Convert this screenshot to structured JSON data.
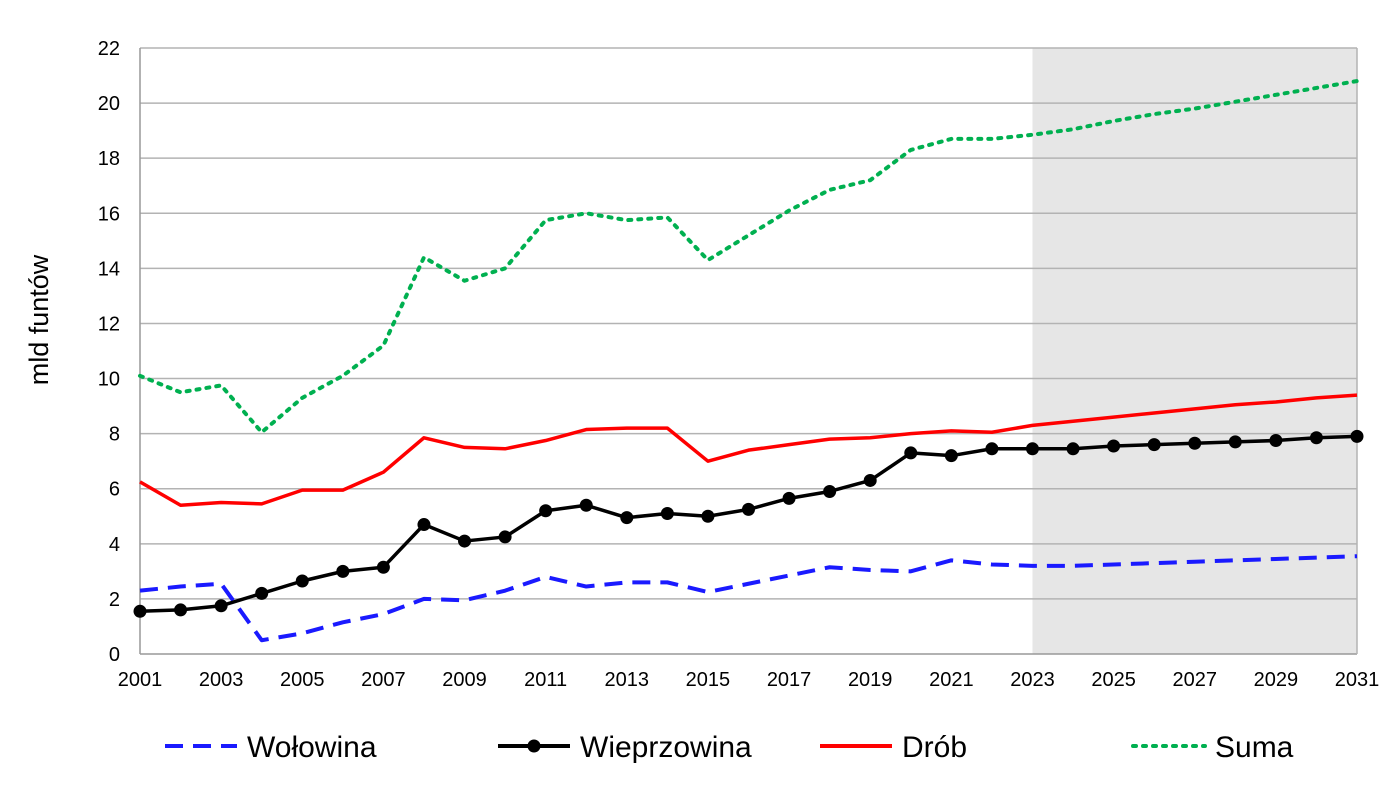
{
  "chart_data": {
    "type": "line",
    "title": "",
    "xlabel": "",
    "ylabel": "mld funtów",
    "xlim": [
      2001,
      2031
    ],
    "ylim": [
      0,
      22
    ],
    "yticks": [
      0,
      2,
      4,
      6,
      8,
      10,
      12,
      14,
      16,
      18,
      20,
      22
    ],
    "xticks": [
      2001,
      2003,
      2005,
      2007,
      2009,
      2011,
      2013,
      2015,
      2017,
      2019,
      2021,
      2023,
      2025,
      2027,
      2029,
      2031
    ],
    "grid": "horizontal",
    "legend_position": "bottom",
    "shaded_region": {
      "from": 2023,
      "to": 2031,
      "color": "#e6e6e6"
    },
    "x": [
      2001,
      2002,
      2003,
      2004,
      2005,
      2006,
      2007,
      2008,
      2009,
      2010,
      2011,
      2012,
      2013,
      2014,
      2015,
      2016,
      2017,
      2018,
      2019,
      2020,
      2021,
      2022,
      2023,
      2024,
      2025,
      2026,
      2027,
      2028,
      2029,
      2030,
      2031
    ],
    "series": [
      {
        "name": "Wołowina",
        "color": "#1a1aff",
        "style": "dashed",
        "values": [
          2.3,
          2.45,
          2.55,
          0.5,
          0.75,
          1.15,
          1.45,
          2.0,
          1.95,
          2.3,
          2.8,
          2.45,
          2.6,
          2.6,
          2.25,
          2.55,
          2.85,
          3.15,
          3.05,
          3.0,
          3.4,
          3.25,
          3.2,
          3.2,
          3.25,
          3.3,
          3.35,
          3.4,
          3.45,
          3.5,
          3.55
        ]
      },
      {
        "name": "Wieprzowina",
        "color": "#000000",
        "style": "solid-markers",
        "values": [
          1.55,
          1.6,
          1.75,
          2.2,
          2.65,
          3.0,
          3.15,
          4.7,
          4.1,
          4.25,
          5.2,
          5.4,
          4.95,
          5.1,
          5.0,
          5.25,
          5.65,
          5.9,
          6.3,
          7.3,
          7.2,
          7.45,
          7.45,
          7.45,
          7.55,
          7.6,
          7.65,
          7.7,
          7.75,
          7.85,
          7.9
        ]
      },
      {
        "name": "Drób",
        "color": "#ff0000",
        "style": "solid",
        "values": [
          6.25,
          5.4,
          5.5,
          5.45,
          5.95,
          5.95,
          6.6,
          7.85,
          7.5,
          7.45,
          7.75,
          8.15,
          8.2,
          8.2,
          7.0,
          7.4,
          7.6,
          7.8,
          7.85,
          8.0,
          8.1,
          8.05,
          8.3,
          8.45,
          8.6,
          8.75,
          8.9,
          9.05,
          9.15,
          9.3,
          9.4
        ]
      },
      {
        "name": "Suma",
        "color": "#00b050",
        "style": "dotted",
        "values": [
          10.1,
          9.5,
          9.75,
          8.05,
          9.3,
          10.1,
          11.2,
          14.4,
          13.55,
          14.0,
          15.75,
          16.0,
          15.75,
          15.85,
          14.3,
          15.2,
          16.1,
          16.85,
          17.2,
          18.3,
          18.7,
          18.7,
          18.85,
          19.05,
          19.35,
          19.6,
          19.8,
          20.05,
          20.3,
          20.55,
          20.8
        ]
      }
    ]
  }
}
